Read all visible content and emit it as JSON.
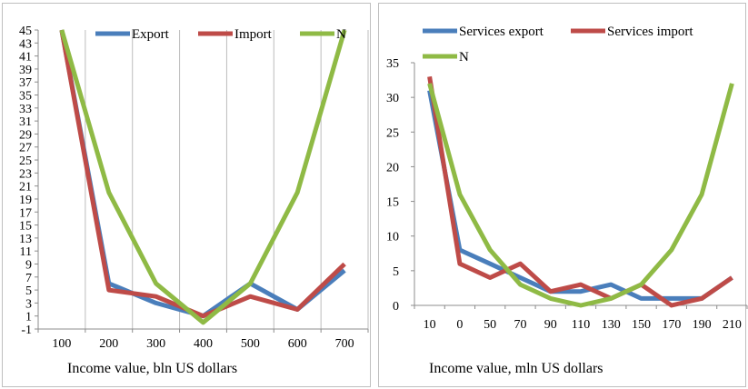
{
  "chart_data": [
    {
      "type": "line",
      "xlabel": "Income value, bln US dollars",
      "ylabel": "",
      "categories": [
        "100",
        "200",
        "300",
        "400",
        "500",
        "600",
        "700"
      ],
      "ylim": [
        -1,
        45
      ],
      "yticks": [
        -1,
        1,
        3,
        5,
        7,
        9,
        11,
        13,
        15,
        17,
        19,
        21,
        23,
        25,
        27,
        29,
        31,
        33,
        35,
        37,
        39,
        41,
        43,
        45
      ],
      "grid": "vertical",
      "legend": "top",
      "series": [
        {
          "name": "Export",
          "color": "#4a7ebb",
          "values": [
            45,
            6,
            3,
            1,
            6,
            2,
            8
          ]
        },
        {
          "name": "Import",
          "color": "#be4b48",
          "values": [
            45,
            5,
            4,
            1,
            4,
            2,
            9
          ]
        },
        {
          "name": "N",
          "color": "#8fba45",
          "values": [
            45,
            20,
            6,
            0,
            6,
            20,
            45
          ]
        }
      ]
    },
    {
      "type": "line",
      "xlabel": "Income value, mln US dollars",
      "ylabel": "",
      "categories": [
        "10",
        "0",
        "50",
        "70",
        "90",
        "110",
        "130",
        "150",
        "170",
        "190",
        "210"
      ],
      "ylim": [
        0,
        35
      ],
      "yticks": [
        0,
        5,
        10,
        15,
        20,
        25,
        30,
        35
      ],
      "grid": "none",
      "legend": "top",
      "series": [
        {
          "name": "Services export",
          "color": "#4a7ebb",
          "values": [
            31,
            8,
            6,
            4,
            2,
            2,
            3,
            1,
            1,
            1,
            4
          ]
        },
        {
          "name": "Services import",
          "color": "#be4b48",
          "values": [
            33,
            6,
            4,
            6,
            2,
            3,
            1,
            3,
            0,
            1,
            4
          ]
        },
        {
          "name": "N",
          "color": "#8fba45",
          "values": [
            32,
            16,
            8,
            3,
            1,
            0,
            1,
            3,
            8,
            16,
            32
          ]
        }
      ]
    }
  ]
}
